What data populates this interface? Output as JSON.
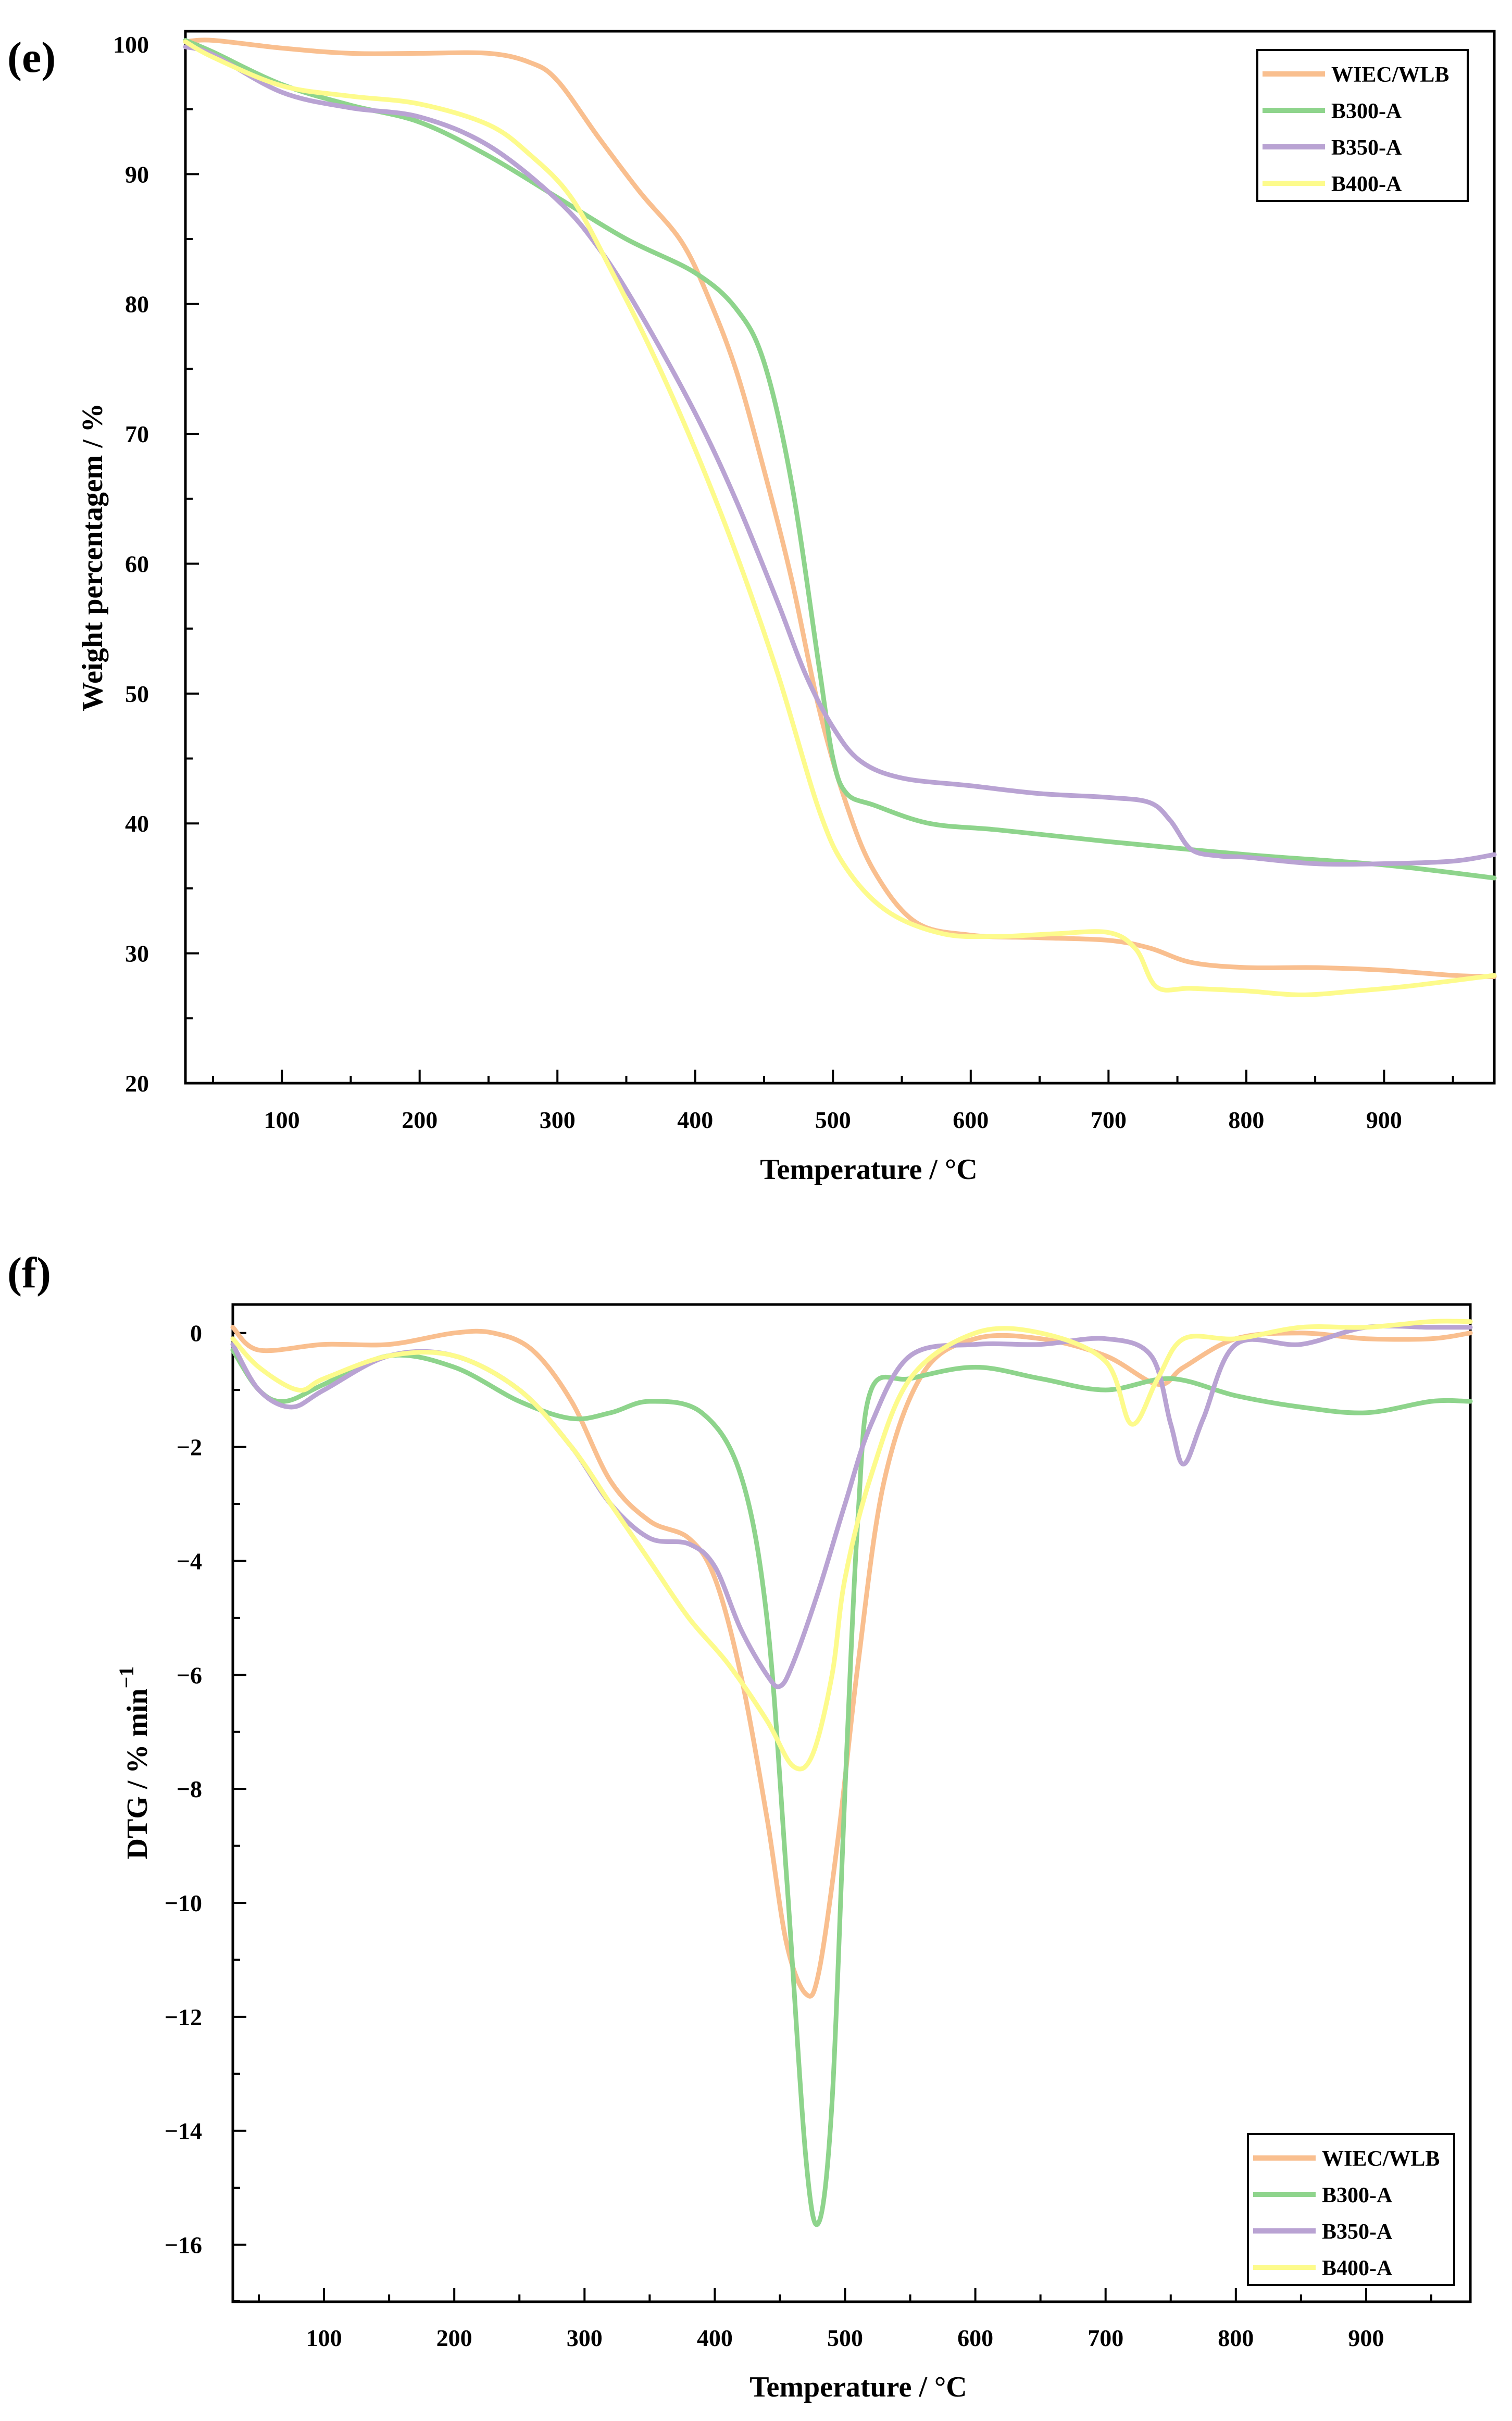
{
  "colors": {
    "WIEC/WLB": "#F9BF8F",
    "B300-A": "#8ED48C",
    "B350-A": "#B9A3D3",
    "B400-A": "#FDFB8C"
  },
  "chart_data": [
    {
      "panel": "(e)",
      "type": "line",
      "title": "",
      "xlabel": "Temperature / °C",
      "ylabel": "Weight percentagem / %",
      "xlim": [
        30,
        980
      ],
      "ylim": [
        20,
        101
      ],
      "xticks": [
        100,
        200,
        300,
        400,
        500,
        600,
        700,
        800,
        900
      ],
      "yticks": [
        20,
        30,
        40,
        50,
        60,
        70,
        80,
        90,
        100
      ],
      "legend_position": "top-right",
      "series": [
        {
          "name": "WIEC/WLB",
          "x": [
            30,
            50,
            100,
            150,
            200,
            250,
            280,
            300,
            330,
            360,
            390,
            410,
            430,
            450,
            470,
            490,
            510,
            530,
            560,
            600,
            650,
            700,
            730,
            760,
            800,
            850,
            900,
            950,
            980
          ],
          "y": [
            100.2,
            100.3,
            99.7,
            99.3,
            99.3,
            99.3,
            98.6,
            97.2,
            92.8,
            88.6,
            84.8,
            80.4,
            74.8,
            67.2,
            58.8,
            48.8,
            41.4,
            36.3,
            32.4,
            31.4,
            31.2,
            31.0,
            30.4,
            29.3,
            28.9,
            28.9,
            28.7,
            28.3,
            28.2
          ]
        },
        {
          "name": "B300-A",
          "x": [
            30,
            50,
            100,
            150,
            200,
            250,
            300,
            350,
            400,
            430,
            450,
            470,
            490,
            500,
            510,
            530,
            570,
            620,
            700,
            800,
            900,
            980
          ],
          "y": [
            100.3,
            99.4,
            96.9,
            95.3,
            94.0,
            91.4,
            88.2,
            85.0,
            82.4,
            79.6,
            75.5,
            66.2,
            52.0,
            45.0,
            42.3,
            41.4,
            40.0,
            39.5,
            38.6,
            37.6,
            36.8,
            35.8
          ]
        },
        {
          "name": "B350-A",
          "x": [
            30,
            50,
            100,
            150,
            200,
            250,
            300,
            330,
            360,
            400,
            430,
            460,
            480,
            500,
            520,
            550,
            600,
            650,
            700,
            730,
            745,
            760,
            780,
            800,
            850,
            900,
            950,
            980
          ],
          "y": [
            99.8,
            99.2,
            96.3,
            95.1,
            94.4,
            92.2,
            88.0,
            84.3,
            79.3,
            71.6,
            64.8,
            57.0,
            51.5,
            47.4,
            44.8,
            43.5,
            42.9,
            42.3,
            42.0,
            41.6,
            40.2,
            38.0,
            37.5,
            37.4,
            36.9,
            36.9,
            37.1,
            37.6
          ]
        },
        {
          "name": "B400-A",
          "x": [
            30,
            50,
            100,
            150,
            200,
            250,
            280,
            310,
            340,
            370,
            400,
            430,
            460,
            490,
            510,
            540,
            580,
            620,
            660,
            700,
            720,
            735,
            760,
            800,
            840,
            880,
            920,
            980
          ],
          "y": [
            100.2,
            99.0,
            96.8,
            96.0,
            95.4,
            93.8,
            91.5,
            88.2,
            82.4,
            76.0,
            68.8,
            60.7,
            51.5,
            41.0,
            36.5,
            33.2,
            31.5,
            31.3,
            31.5,
            31.6,
            30.3,
            27.4,
            27.3,
            27.1,
            26.8,
            27.1,
            27.5,
            28.3
          ]
        }
      ]
    },
    {
      "panel": "(f)",
      "type": "line",
      "title": "",
      "xlabel": "Temperature / °C",
      "ylabel": "DTG / % min",
      "ylabel_superscript": "−1",
      "xlim": [
        30,
        980
      ],
      "ylim": [
        -17,
        0.5
      ],
      "xticks": [
        100,
        200,
        300,
        400,
        500,
        600,
        700,
        800,
        900
      ],
      "yticks": [
        0,
        -2,
        -4,
        -6,
        -8,
        -10,
        -12,
        -14,
        -16
      ],
      "ytick_labels": [
        "0",
        "−2",
        "−4",
        "−6",
        "−8",
        "−10",
        "−12",
        "−14",
        "−16"
      ],
      "legend_position": "bottom-right",
      "series": [
        {
          "name": "WIEC/WLB",
          "x": [
            30,
            50,
            100,
            150,
            200,
            230,
            260,
            290,
            320,
            350,
            380,
            400,
            420,
            440,
            455,
            470,
            480,
            495,
            510,
            530,
            560,
            600,
            650,
            700,
            740,
            760,
            800,
            850,
            900,
            950,
            980
          ],
          "y": [
            0.1,
            -0.3,
            -0.2,
            -0.2,
            0.0,
            0.0,
            -0.3,
            -1.2,
            -2.6,
            -3.3,
            -3.6,
            -4.3,
            -6.0,
            -8.5,
            -10.7,
            -11.6,
            -11.2,
            -8.8,
            -5.8,
            -2.6,
            -0.7,
            -0.1,
            -0.1,
            -0.4,
            -0.9,
            -0.6,
            -0.1,
            0.0,
            -0.1,
            -0.1,
            0.0
          ]
        },
        {
          "name": "B300-A",
          "x": [
            30,
            50,
            70,
            100,
            150,
            200,
            250,
            290,
            320,
            350,
            390,
            420,
            440,
            455,
            470,
            480,
            490,
            500,
            510,
            520,
            550,
            600,
            650,
            700,
            750,
            800,
            850,
            900,
            950,
            980
          ],
          "y": [
            -0.3,
            -1.0,
            -1.2,
            -0.9,
            -0.4,
            -0.6,
            -1.2,
            -1.5,
            -1.4,
            -1.2,
            -1.4,
            -2.5,
            -5.0,
            -9.5,
            -14.5,
            -15.6,
            -13.5,
            -8.0,
            -3.2,
            -1.0,
            -0.8,
            -0.6,
            -0.8,
            -1.0,
            -0.8,
            -1.1,
            -1.3,
            -1.4,
            -1.2,
            -1.2
          ]
        },
        {
          "name": "B350-A",
          "x": [
            30,
            50,
            75,
            100,
            150,
            200,
            250,
            290,
            320,
            350,
            380,
            400,
            420,
            440,
            450,
            460,
            480,
            500,
            520,
            550,
            600,
            650,
            700,
            735,
            750,
            760,
            775,
            800,
            850,
            900,
            950,
            980
          ],
          "y": [
            -0.2,
            -1.0,
            -1.3,
            -1.0,
            -0.4,
            -0.4,
            -1.0,
            -2.0,
            -3.0,
            -3.6,
            -3.7,
            -4.1,
            -5.2,
            -6.0,
            -6.2,
            -5.8,
            -4.5,
            -3.0,
            -1.6,
            -0.4,
            -0.2,
            -0.2,
            -0.1,
            -0.4,
            -1.6,
            -2.3,
            -1.5,
            -0.2,
            -0.2,
            0.1,
            0.1,
            0.1
          ]
        },
        {
          "name": "B400-A",
          "x": [
            30,
            50,
            80,
            100,
            150,
            200,
            250,
            290,
            320,
            350,
            380,
            410,
            440,
            460,
            475,
            490,
            500,
            520,
            550,
            600,
            650,
            700,
            720,
            740,
            760,
            800,
            850,
            900,
            950,
            980
          ],
          "y": [
            -0.1,
            -0.6,
            -1.0,
            -0.8,
            -0.4,
            -0.4,
            -1.0,
            -2.0,
            -3.0,
            -4.0,
            -5.0,
            -5.8,
            -6.8,
            -7.6,
            -7.4,
            -6.0,
            -4.3,
            -2.5,
            -0.8,
            0.0,
            0.0,
            -0.5,
            -1.6,
            -0.8,
            -0.1,
            -0.1,
            0.1,
            0.1,
            0.2,
            0.2
          ]
        }
      ]
    }
  ]
}
